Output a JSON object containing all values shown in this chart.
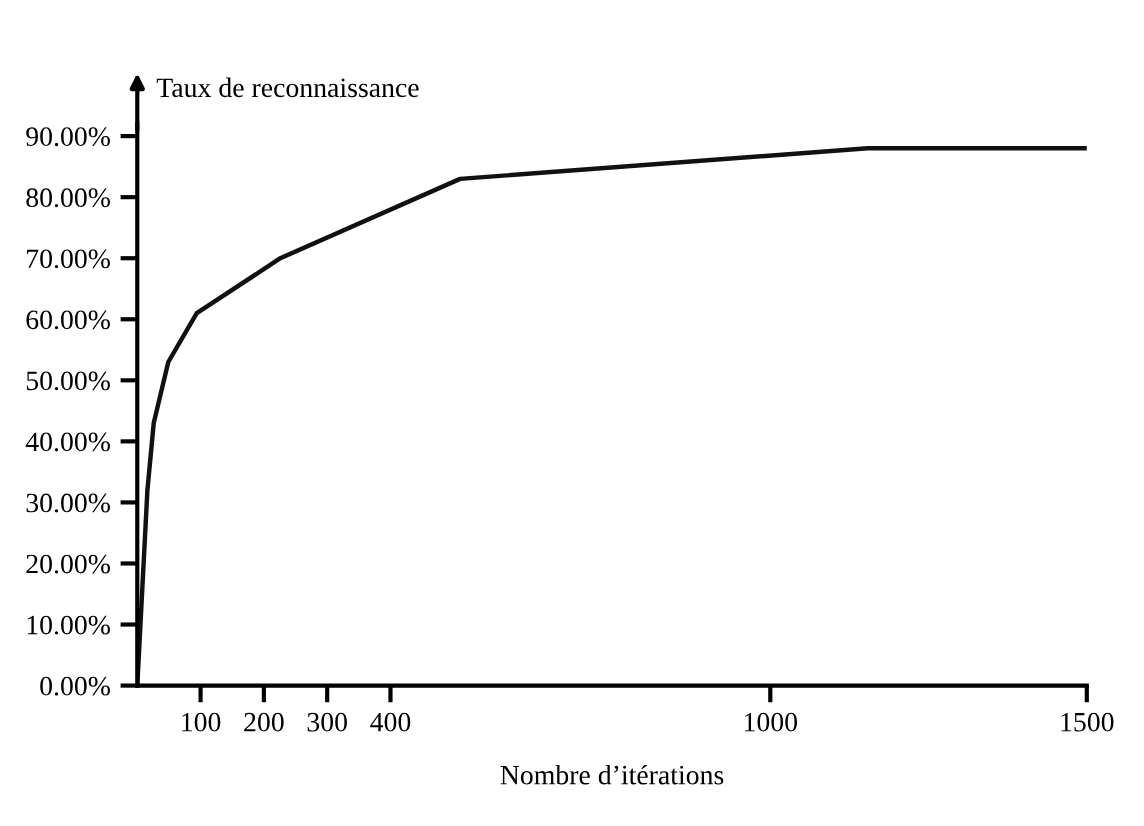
{
  "chart_data": {
    "type": "line",
    "ylabel": "Taux de reconnaissance",
    "xlabel": "Nombre d’itérations",
    "x": [
      0,
      16,
      26,
      49,
      94,
      226,
      510,
      1154,
      1500
    ],
    "series": [
      {
        "color": "#111111",
        "values": [
          0,
          32,
          43,
          53,
          61,
          70,
          83,
          88,
          88
        ]
      }
    ],
    "xlim": [
      0,
      1500
    ],
    "xticks": [
      100,
      200,
      300,
      400,
      1000,
      1500
    ],
    "ylim": [
      0,
      92
    ],
    "yticks": [
      {
        "value": 0,
        "label": "0.00%"
      },
      {
        "value": 10,
        "label": "10.00%"
      },
      {
        "value": 20,
        "label": "20.00%"
      },
      {
        "value": 30,
        "label": "30.00%"
      },
      {
        "value": 40,
        "label": "40.00%"
      },
      {
        "value": 50,
        "label": "50.00%"
      },
      {
        "value": 60,
        "label": "60.00%"
      },
      {
        "value": 70,
        "label": "70.00%"
      },
      {
        "value": 80,
        "label": "80.00%"
      },
      {
        "value": 90,
        "label": "90.00%"
      }
    ],
    "grid": false,
    "legend": false,
    "marker": "none",
    "line_style": "solid"
  }
}
